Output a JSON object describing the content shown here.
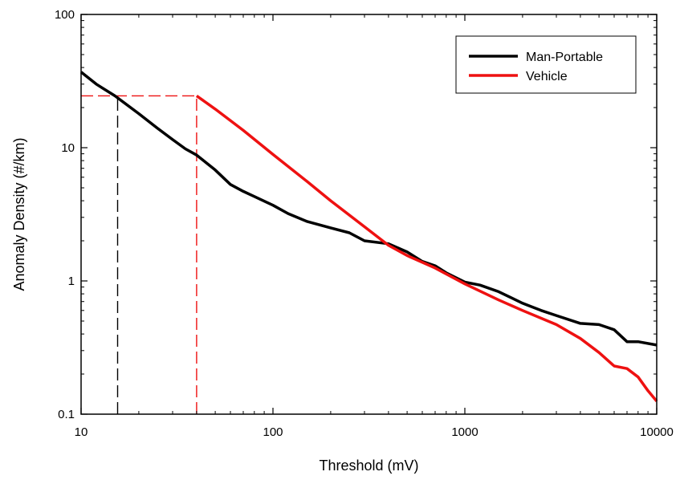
{
  "chart_data": {
    "type": "line",
    "title": "",
    "xlabel": "Threshold (mV)",
    "ylabel": "Anomaly Density (#/km)",
    "xscale": "log",
    "yscale": "log",
    "xlim": [
      10,
      10000
    ],
    "ylim": [
      0.1,
      100
    ],
    "x_ticks": [
      {
        "value": 10,
        "label": "10"
      },
      {
        "value": 100,
        "label": "100"
      },
      {
        "value": 1000,
        "label": "1000"
      },
      {
        "value": 10000,
        "label": "10000"
      }
    ],
    "y_ticks": [
      {
        "value": 0.1,
        "label": "0.1"
      },
      {
        "value": 1,
        "label": "1"
      },
      {
        "value": 10,
        "label": "10"
      },
      {
        "value": 100,
        "label": "100"
      }
    ],
    "grid": false,
    "legend_position": "top-right",
    "series": [
      {
        "name": "Man-Portable",
        "color": "#000000",
        "x": [
          10,
          12,
          15,
          20,
          25,
          30,
          35,
          40,
          50,
          60,
          70,
          80,
          100,
          120,
          150,
          200,
          250,
          300,
          400,
          500,
          600,
          700,
          800,
          1000,
          1200,
          1500,
          2000,
          2500,
          3000,
          4000,
          5000,
          6000,
          7000,
          8000,
          10000
        ],
        "values": [
          37,
          30,
          24.5,
          18,
          14,
          11.5,
          9.8,
          8.8,
          6.8,
          5.3,
          4.7,
          4.3,
          3.7,
          3.2,
          2.8,
          2.5,
          2.3,
          2.0,
          1.9,
          1.65,
          1.4,
          1.3,
          1.15,
          0.98,
          0.93,
          0.83,
          0.68,
          0.6,
          0.55,
          0.48,
          0.47,
          0.43,
          0.35,
          0.35,
          0.33
        ]
      },
      {
        "name": "Vehicle",
        "color": "#ee1111",
        "x": [
          40,
          50,
          70,
          100,
          150,
          200,
          300,
          400,
          500,
          700,
          1000,
          1500,
          2000,
          3000,
          4000,
          5000,
          6000,
          7000,
          8000,
          9000,
          10000
        ],
        "values": [
          24.5,
          19.5,
          13.5,
          8.9,
          5.6,
          4.0,
          2.55,
          1.85,
          1.55,
          1.25,
          0.95,
          0.72,
          0.6,
          0.47,
          0.37,
          0.29,
          0.23,
          0.22,
          0.19,
          0.15,
          0.125
        ]
      }
    ],
    "reference_lines": [
      {
        "color": "#000000",
        "dash": "dashed",
        "points": [
          [
            15.5,
            0.1
          ],
          [
            15.5,
            24.5
          ]
        ]
      },
      {
        "color": "#ee1111",
        "dash": "dashed",
        "points": [
          [
            10,
            24.5
          ],
          [
            40,
            24.5
          ]
        ]
      },
      {
        "color": "#ee1111",
        "dash": "dashed",
        "points": [
          [
            40,
            0.1
          ],
          [
            40,
            24.5
          ]
        ]
      }
    ]
  }
}
